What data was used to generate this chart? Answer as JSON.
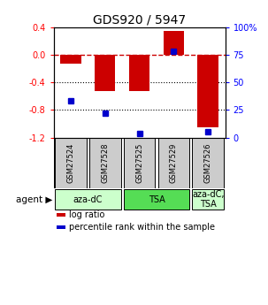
{
  "title": "GDS920 / 5947",
  "samples": [
    "GSM27524",
    "GSM27528",
    "GSM27525",
    "GSM27529",
    "GSM27526"
  ],
  "log_ratios": [
    -0.13,
    -0.52,
    -0.53,
    0.35,
    -1.05
  ],
  "percentile_ranks": [
    33,
    22,
    4,
    78,
    5
  ],
  "ylim": [
    -1.2,
    0.4
  ],
  "y_ticks_left": [
    0.4,
    0.0,
    -0.4,
    -0.8,
    -1.2
  ],
  "y_ticks_right_labels": [
    "100%",
    "75",
    "50",
    "25",
    "0"
  ],
  "group_positions": [
    {
      "cols": [
        0,
        1
      ],
      "label": "aza-dC",
      "color": "#ccffcc"
    },
    {
      "cols": [
        2,
        3
      ],
      "label": "TSA",
      "color": "#55dd55"
    },
    {
      "cols": [
        4
      ],
      "label": "aza-dC,\nTSA",
      "color": "#ccffcc"
    }
  ],
  "bar_color": "#cc0000",
  "dot_color": "#0000cc",
  "zero_line_color": "#cc0000",
  "grid_color": "#000000",
  "sample_box_color": "#cccccc",
  "background_color": "#ffffff",
  "legend_items": [
    {
      "color": "#cc0000",
      "label": "log ratio"
    },
    {
      "color": "#0000cc",
      "label": "percentile rank within the sample"
    }
  ]
}
